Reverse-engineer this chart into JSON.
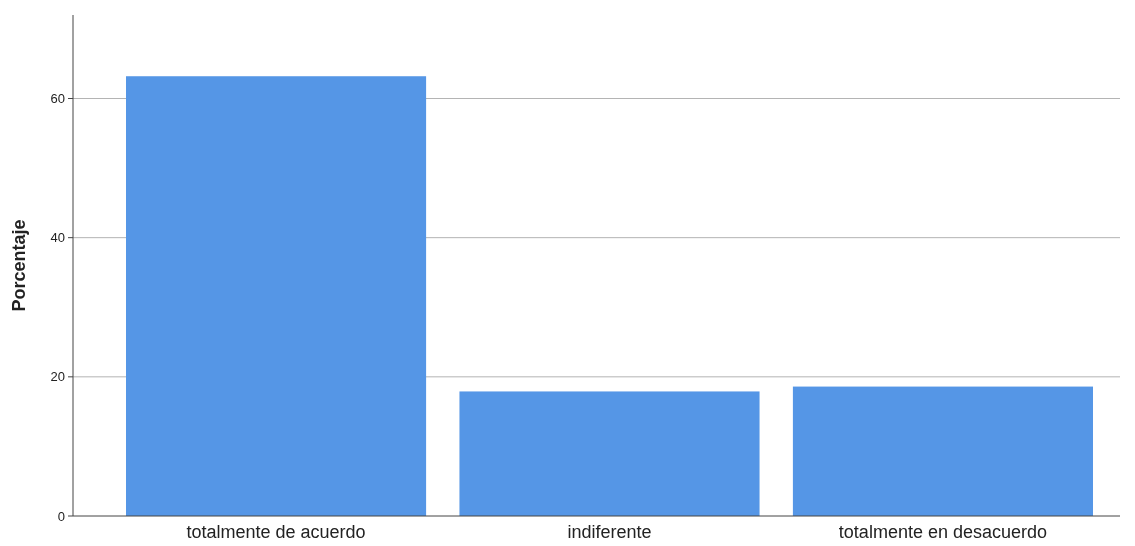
{
  "chart_data": {
    "type": "bar",
    "ylabel": "Porcentaje",
    "categories": [
      "totalmente de acuerdo",
      "indiferente",
      "totalmente en desacuerdo"
    ],
    "values": [
      63.2,
      17.9,
      18.6
    ],
    "color": "#5596e6",
    "ylim": [
      0,
      72
    ],
    "yticks": [
      0,
      20,
      40,
      60
    ],
    "grid": "y"
  }
}
